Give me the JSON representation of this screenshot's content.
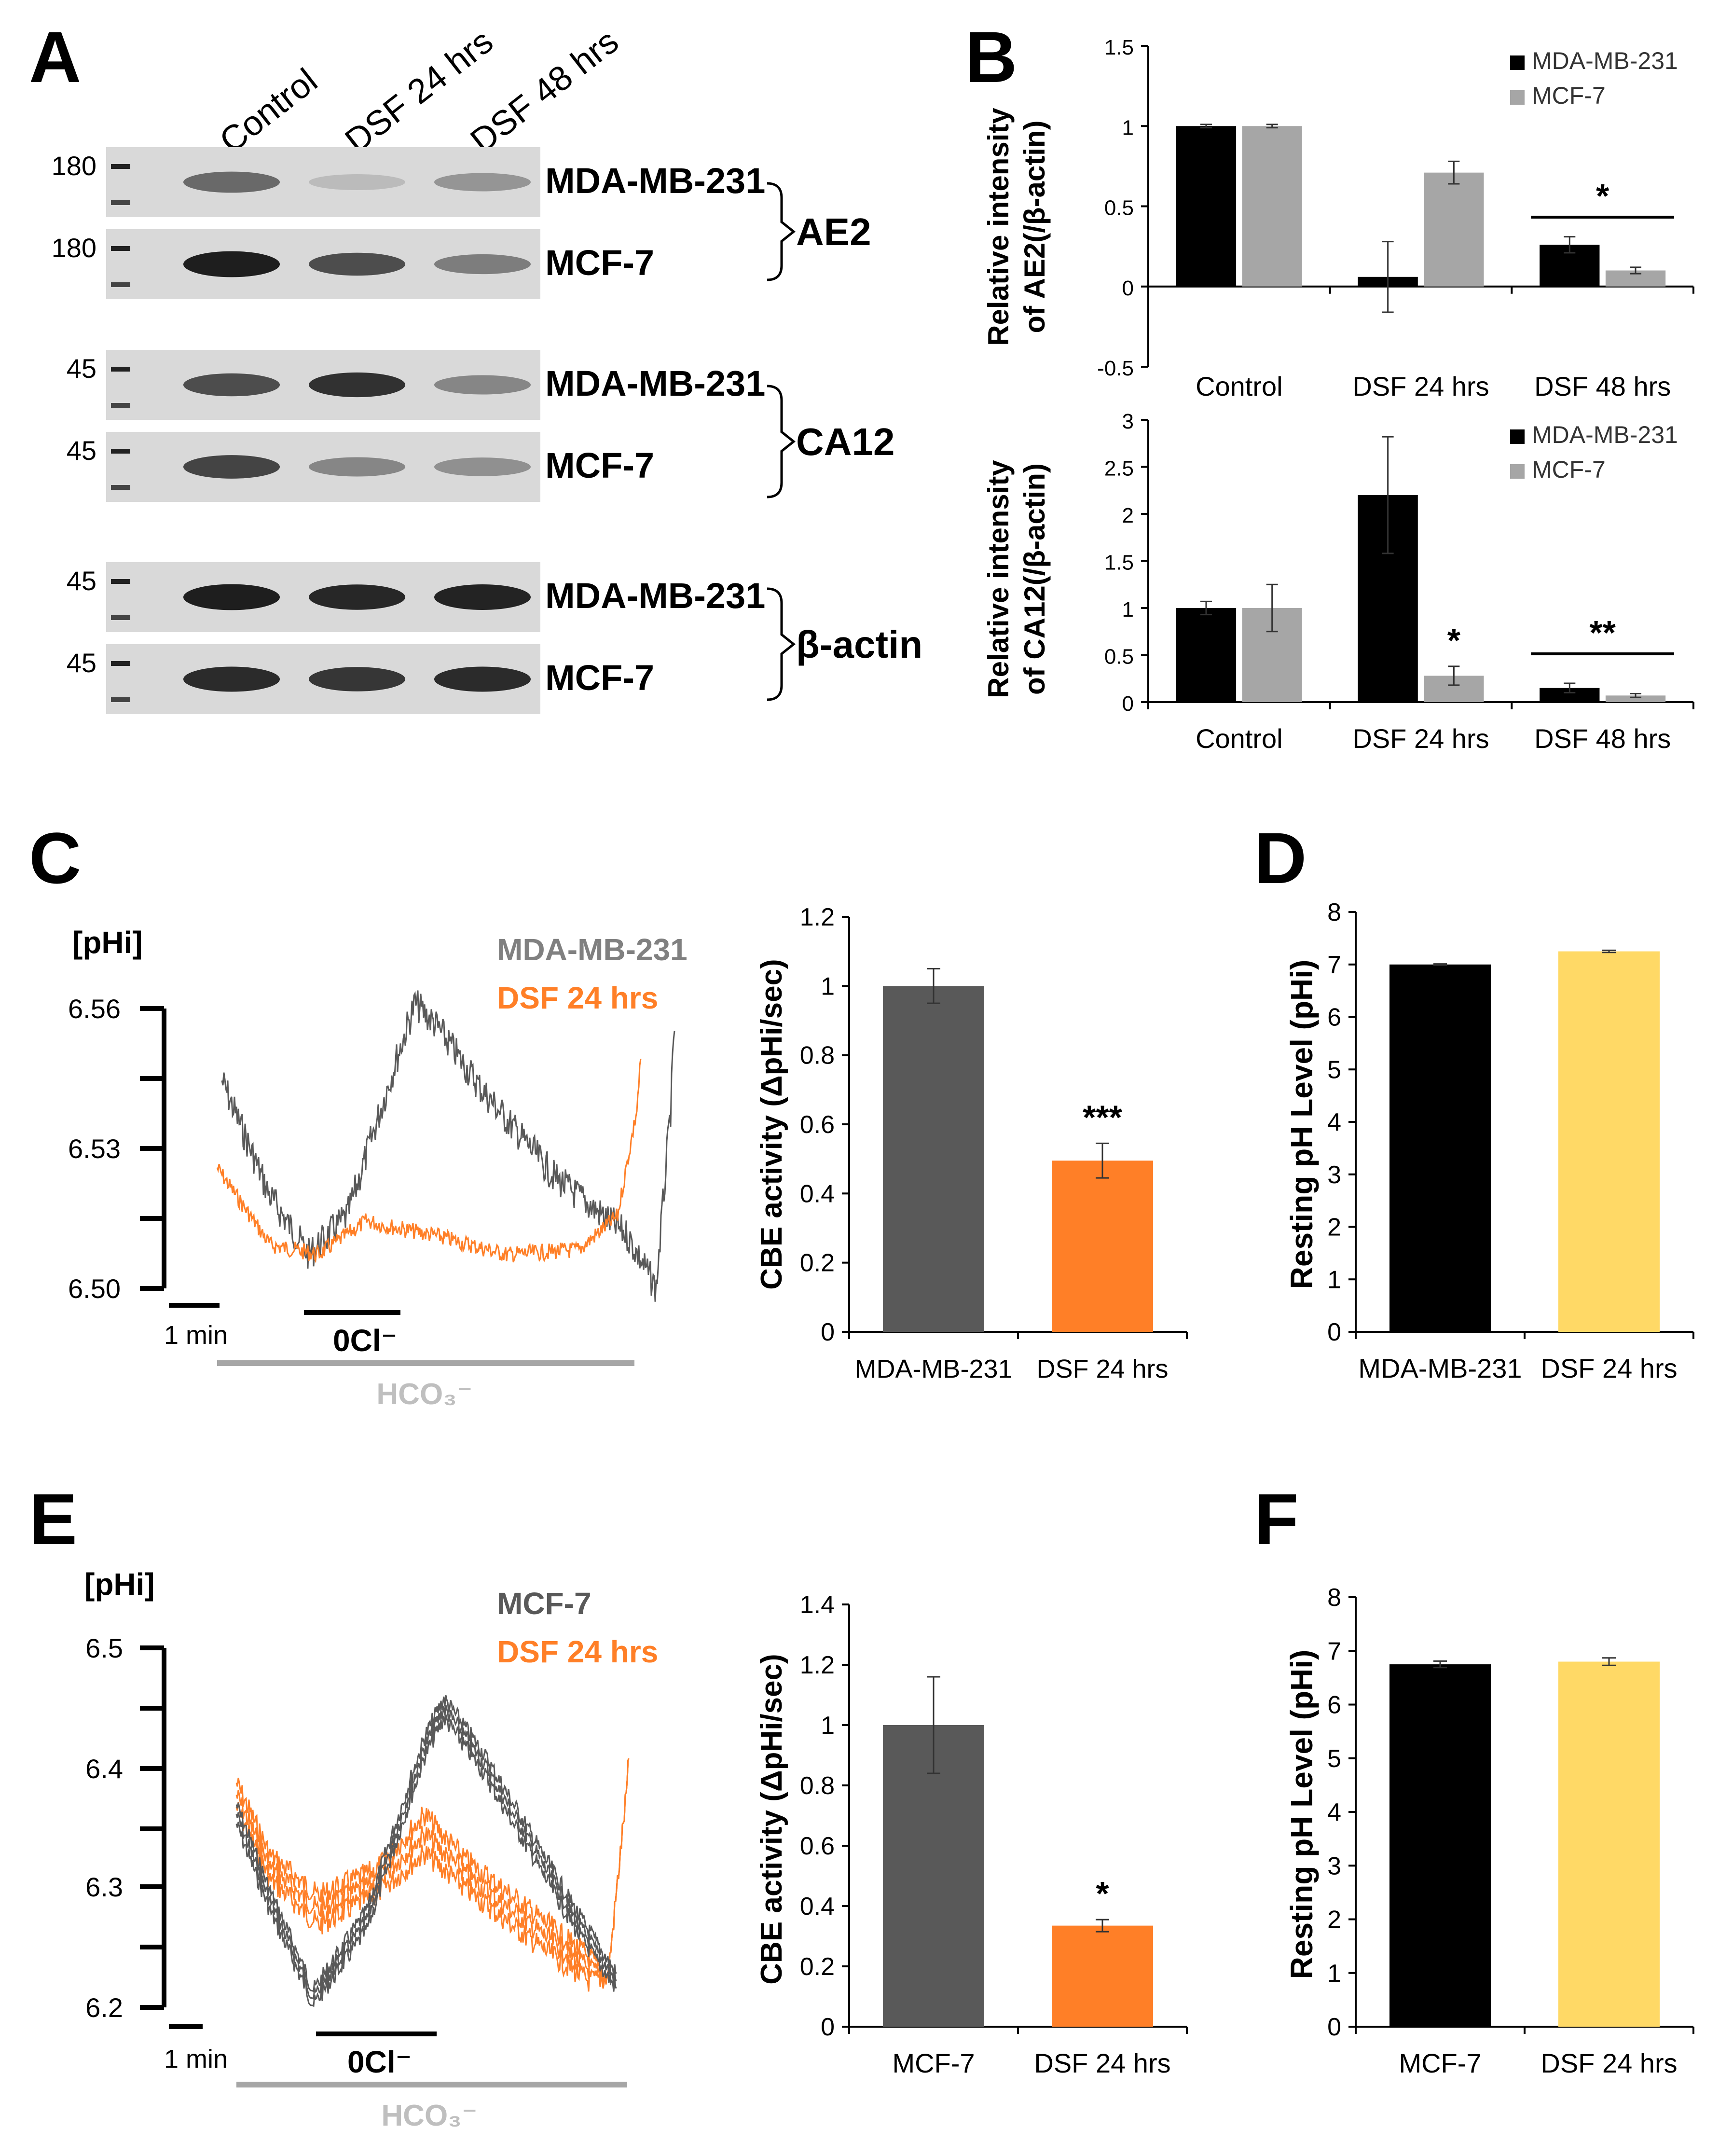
{
  "figure": {
    "panel_labels": [
      "A",
      "B",
      "C",
      "D",
      "E",
      "F"
    ]
  },
  "blot": {
    "lanes": [
      "Control",
      "DSF 24 hrs",
      "DSF 48 hrs"
    ],
    "rows": [
      {
        "marker": "180",
        "cell": "MDA-MB-231",
        "bands": [
          0.55,
          0.12,
          0.32
        ]
      },
      {
        "marker": "180",
        "cell": "MCF-7",
        "bands": [
          0.95,
          0.7,
          0.45
        ]
      },
      {
        "marker": "45",
        "cell": "MDA-MB-231",
        "bands": [
          0.7,
          0.85,
          0.4
        ]
      },
      {
        "marker": "45",
        "cell": "MCF-7",
        "bands": [
          0.75,
          0.4,
          0.35
        ]
      },
      {
        "marker": "45",
        "cell": "MDA-MB-231",
        "bands": [
          0.95,
          0.9,
          0.92
        ]
      },
      {
        "marker": "45",
        "cell": "MCF-7",
        "bands": [
          0.88,
          0.82,
          0.88
        ]
      }
    ],
    "groups": [
      "AE2",
      "CA12",
      "β-actin"
    ]
  },
  "colors": {
    "black": "#000000",
    "grey_bar": "#a6a6a6",
    "dark_grey": "#595959",
    "orange": "#ff7f27",
    "yellow": "#ffd966"
  },
  "chart_data": [
    {
      "id": "B_AE2",
      "type": "bar",
      "ylabel_line1": "Relative intensity",
      "ylabel_line2": "of AE2(/β-actin)",
      "ylim": [
        -0.5,
        1.5
      ],
      "yticks": [
        "1.5",
        "1",
        "0.5",
        "0",
        "-0.5"
      ],
      "categories": [
        "Control",
        "DSF 24 hrs",
        "DSF 48 hrs"
      ],
      "series": [
        {
          "name": "MDA-MB-231",
          "values": [
            1.0,
            0.06,
            0.26
          ],
          "errors": [
            0.01,
            0.22,
            0.05
          ]
        },
        {
          "name": "MCF-7",
          "values": [
            1.0,
            0.71,
            0.1
          ],
          "errors": [
            0.01,
            0.07,
            0.02
          ]
        }
      ],
      "annotation": "*"
    },
    {
      "id": "B_CA12",
      "type": "bar",
      "ylabel_line1": "Relative intensity",
      "ylabel_line2": "of CA12(/β-actin)",
      "ylim": [
        0,
        3
      ],
      "yticks": [
        "3",
        "2.5",
        "2",
        "1.5",
        "1",
        "0.5",
        "0"
      ],
      "categories": [
        "Control",
        "DSF 24 hrs",
        "DSF 48 hrs"
      ],
      "series": [
        {
          "name": "MDA-MB-231",
          "values": [
            1.0,
            2.2,
            0.15
          ],
          "errors": [
            0.07,
            0.62,
            0.05
          ]
        },
        {
          "name": "MCF-7",
          "values": [
            1.0,
            0.28,
            0.07
          ],
          "errors": [
            0.25,
            0.1,
            0.02
          ]
        }
      ],
      "annotation_single": "*",
      "annotation": "**"
    },
    {
      "id": "C_trace",
      "type": "line",
      "ylabel": "[pHi]",
      "yticks": [
        "6.56",
        "6.53",
        "6.50"
      ],
      "series": [
        {
          "name": "MDA-MB-231"
        },
        {
          "name": "DSF 24 hrs"
        }
      ],
      "time_bar": "1 min",
      "cl_label": "0Cl⁻",
      "hco3_label": "HCO₃⁻"
    },
    {
      "id": "C_bar",
      "type": "bar",
      "ylabel": "CBE activity (ΔpHi/sec)",
      "ylim": [
        0,
        1.2
      ],
      "yticks": [
        "1.2",
        "1",
        "0.8",
        "0.6",
        "0.4",
        "0.2",
        "0"
      ],
      "categories": [
        "MDA-MB-231",
        "DSF 24 hrs"
      ],
      "values": [
        1.0,
        0.495
      ],
      "errors": [
        0.05,
        0.05
      ],
      "annotation": "***"
    },
    {
      "id": "D_bar",
      "type": "bar",
      "ylabel": "Resting pH Level (pHi)",
      "ylim": [
        0,
        8
      ],
      "yticks": [
        "8",
        "7",
        "6",
        "5",
        "4",
        "3",
        "2",
        "1",
        "0"
      ],
      "categories": [
        "MDA-MB-231",
        "DSF 24 hrs"
      ],
      "values": [
        7.0,
        7.25
      ],
      "errors": [
        0.01,
        0.02
      ]
    },
    {
      "id": "E_trace",
      "type": "line",
      "ylabel": "[pHi]",
      "yticks": [
        "6.5",
        "6.4",
        "6.3",
        "6.2"
      ],
      "series": [
        {
          "name": "MCF-7"
        },
        {
          "name": "DSF 24 hrs"
        }
      ],
      "time_bar": "1 min",
      "cl_label": "0Cl⁻",
      "hco3_label": "HCO₃⁻"
    },
    {
      "id": "E_bar",
      "type": "bar",
      "ylabel": "CBE activity (ΔpHi/sec)",
      "ylim": [
        0,
        1.4
      ],
      "yticks": [
        "1.4",
        "1.2",
        "1",
        "0.8",
        "0.6",
        "0.4",
        "0.2",
        "0"
      ],
      "categories": [
        "MCF-7",
        "DSF 24 hrs"
      ],
      "values": [
        1.0,
        0.335
      ],
      "errors": [
        0.16,
        0.02
      ],
      "annotation": "*"
    },
    {
      "id": "F_bar",
      "type": "bar",
      "ylabel": "Resting pH Level (pHi)",
      "ylim": [
        0,
        8
      ],
      "yticks": [
        "8",
        "7",
        "6",
        "5",
        "4",
        "3",
        "2",
        "1",
        "0"
      ],
      "categories": [
        "MCF-7",
        "DSF 24 hrs"
      ],
      "values": [
        6.75,
        6.8
      ],
      "errors": [
        0.06,
        0.07
      ]
    }
  ]
}
